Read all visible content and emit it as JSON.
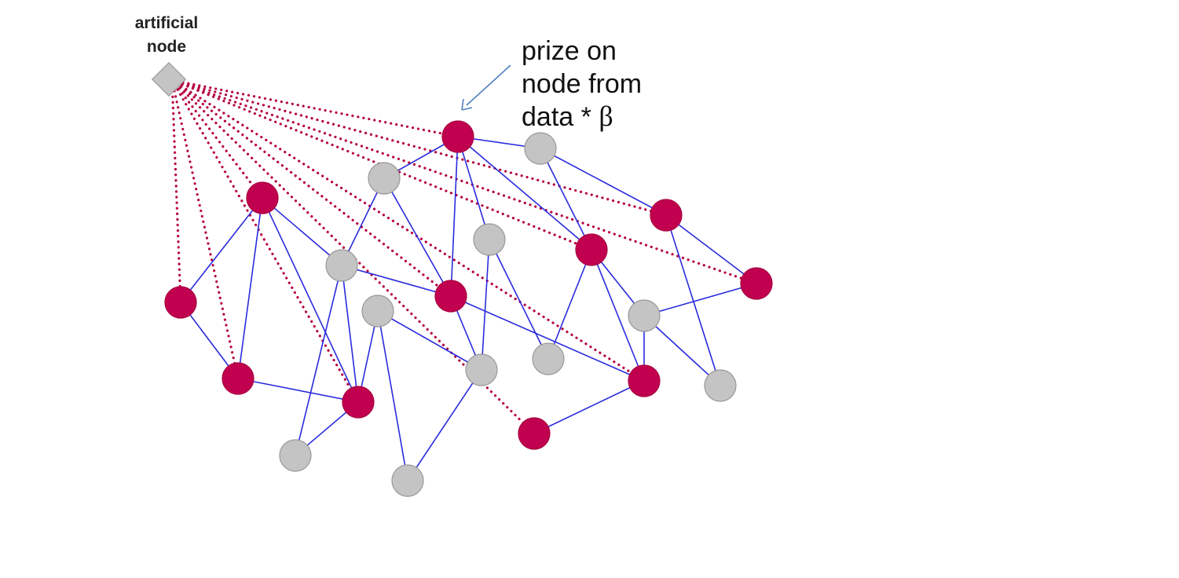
{
  "artificial_node": {
    "label_line1": "artificial",
    "label_line2": "node"
  },
  "annotation": {
    "line1": "prize on",
    "line2": "node from",
    "line3_prefix": "data * ",
    "line3_symbol": "β"
  },
  "colors": {
    "prize_node": "#c1004f",
    "plain_node": "#c4c4c4",
    "node_stroke": "#999999",
    "graph_edge": "#2b2bdd",
    "prize_edge": "#b5003c",
    "arrow": "#4f7fbf",
    "artificial_fill": "#c4c4c4"
  },
  "legend_semantics": {
    "prize_nodes": [
      "n1",
      "n4",
      "n6",
      "n8",
      "n10",
      "n11",
      "n13",
      "n15",
      "n16",
      "n17"
    ],
    "plain_nodes": [
      "n2",
      "n3",
      "n5",
      "n7",
      "n9",
      "n12",
      "n14",
      "n18",
      "n19",
      "n20",
      "n21"
    ]
  }
}
